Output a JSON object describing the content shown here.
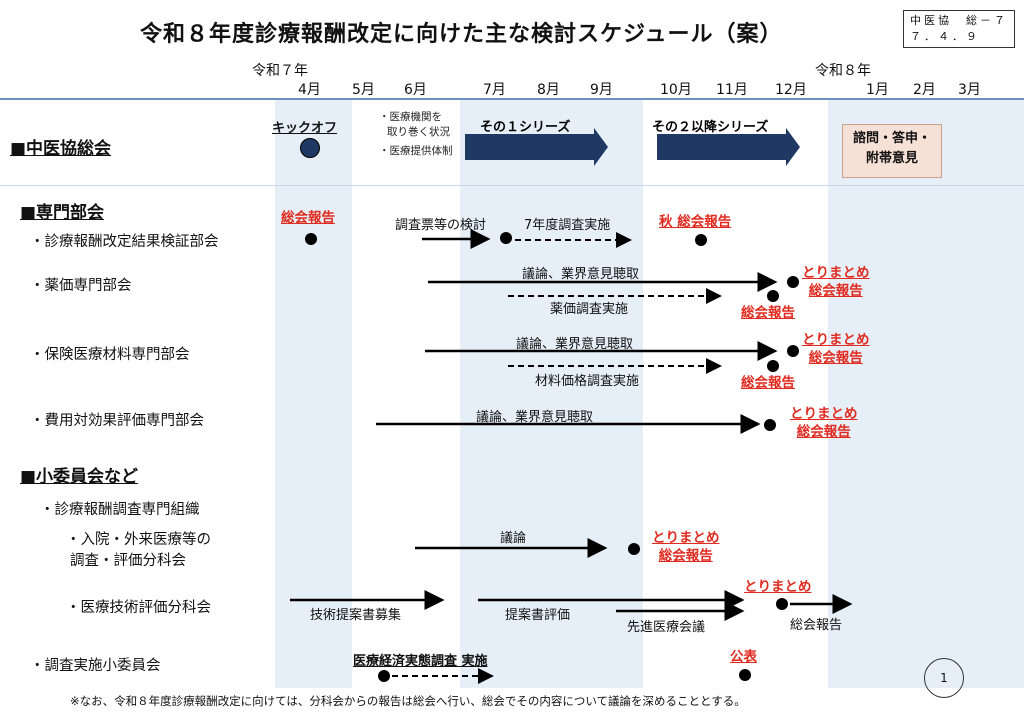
{
  "title": "令和８年度診療報酬改定に向けた主な検討スケジュール（案）",
  "doc_id": {
    "line1": "中医協　総－７",
    "line2": "７．４．９"
  },
  "era": {
    "r7": "令和７年",
    "r8": "令和８年"
  },
  "months": [
    "4月",
    "5月",
    "6月",
    "7月",
    "8月",
    "9月",
    "10月",
    "11月",
    "12月",
    "1月",
    "2月",
    "3月"
  ],
  "sections": {
    "soukai": "■中医協総会",
    "senmon": "■専門部会",
    "shouiin": "■小委員会など"
  },
  "soukai": {
    "kickoff": "キックオフ",
    "notes": [
      "・医療機関を",
      "取り巻く状況",
      "・医療提供体制"
    ],
    "series1": "その１シリーズ",
    "series2": "その２以降シリーズ",
    "final": [
      "諮問・答申・",
      "附帯意見"
    ]
  },
  "rows": {
    "kensho": "・診療報酬改定結果検証部会",
    "yakka": "・薬価専門部会",
    "hoken": "・保険医療材料専門部会",
    "hiyou": "・費用対効果評価専門部会",
    "chousa_soshiki": "・診療報酬調査専門組織",
    "nyuin_1": "・入院・外来医療等の",
    "nyuin_2": "調査・評価分科会",
    "gijutsu": "・医療技術評価分科会",
    "jisshi": "・調査実施小委員会"
  },
  "labels": {
    "soukai_houkoku": "総会報告",
    "chousahyo": "調査票等の検討",
    "r7_chousa": "7年度調査実施",
    "aki_houkoku": "秋 総会報告",
    "giron_gyokai": "議論、業界意見聴取",
    "yakka_chousa": "薬価調査実施",
    "zairyo_chousa": "材料価格調査実施",
    "torimatome": "とりまとめ",
    "giron": "議論",
    "teian_boshu": "技術提案書募集",
    "teian_hyouka": "提案書評価",
    "senshin": "先進医療会議",
    "soukai_houkoku_plain": "総会報告",
    "keizai_chousa": "医療経済実態調査 実施",
    "kouhyou": "公表"
  },
  "footer": "※なお、令和８年度診療報酬改定に向けては、分科会からの報告は総会へ行い、総会でその内容について議論を深めることとする。",
  "page": "1",
  "colors": {
    "band": "#e6eff7",
    "navy": "#1f3864",
    "red": "#e02b20",
    "final_box": "#f6e1d6"
  }
}
